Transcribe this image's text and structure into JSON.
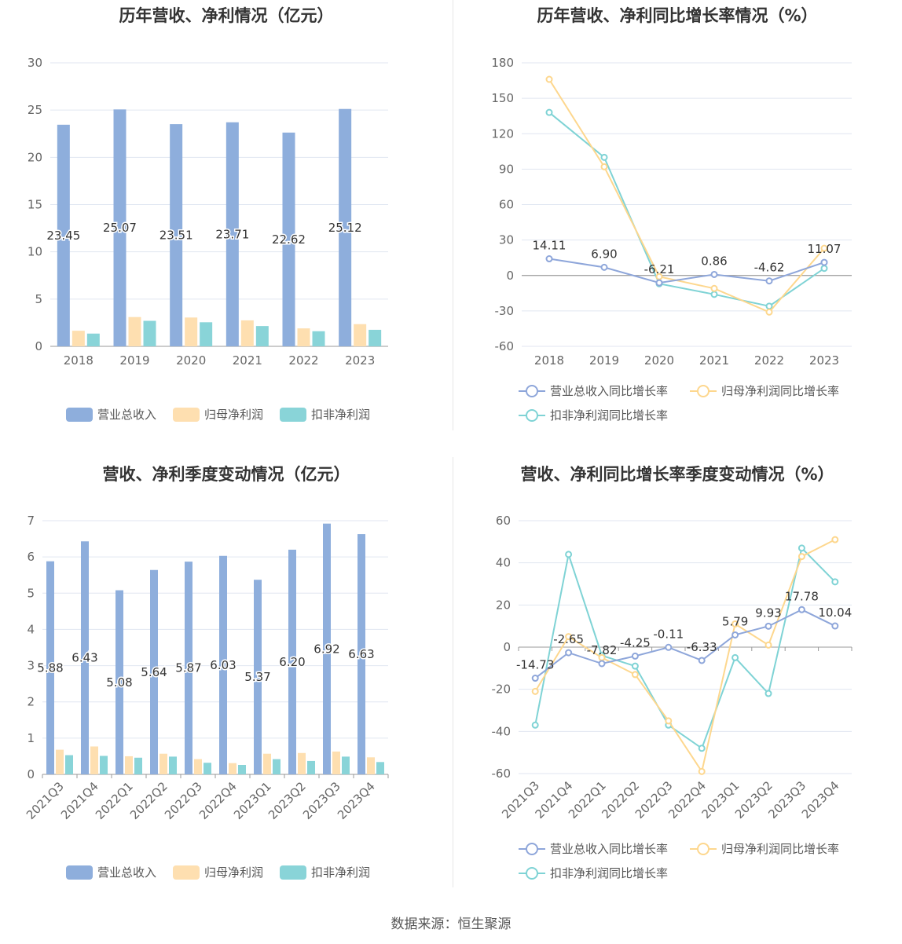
{
  "source": "数据来源：恒生聚源",
  "colors": {
    "blue": "#8eaedc",
    "orange": "#fedfb0",
    "teal": "#89d4d8",
    "line_blue": "#8ea6da",
    "line_orange": "#fdd78e",
    "line_teal": "#7fd3d5"
  },
  "panels": [
    {
      "title": "历年营收、净利情况（亿元）",
      "legend": [
        "营业总收入",
        "归母净利润",
        "扣非净利润"
      ]
    },
    {
      "title": "历年营收、净利同比增长率情况（%）",
      "legend": [
        "营业总收入同比增长率",
        "归母净利润同比增长率",
        "扣非净利润同比增长率"
      ]
    },
    {
      "title": "营收、净利季度变动情况（亿元）",
      "legend": [
        "营业总收入",
        "归母净利润",
        "扣非净利润"
      ]
    },
    {
      "title": "营收、净利同比增长率季度变动情况（%）",
      "legend": [
        "营业总收入同比增长率",
        "归母净利润同比增长率",
        "扣非净利润同比增长率"
      ]
    }
  ],
  "chart_data": [
    {
      "type": "bar",
      "categories": [
        "2018",
        "2019",
        "2020",
        "2021",
        "2022",
        "2023"
      ],
      "ylim": [
        0,
        30
      ],
      "yticks": [
        0,
        5,
        10,
        15,
        20,
        25,
        30
      ],
      "series": [
        {
          "name": "营业总收入",
          "values": [
            23.45,
            25.07,
            23.51,
            23.71,
            22.62,
            25.12
          ],
          "labels": [
            "23.45",
            "25.07",
            "23.51",
            "23.71",
            "22.62",
            "25.12"
          ]
        },
        {
          "name": "归母净利润",
          "values": [
            1.65,
            3.1,
            3.05,
            2.75,
            1.9,
            2.35
          ]
        },
        {
          "name": "扣非净利润",
          "values": [
            1.35,
            2.7,
            2.55,
            2.15,
            1.6,
            1.75
          ]
        }
      ]
    },
    {
      "type": "line",
      "categories": [
        "2018",
        "2019",
        "2020",
        "2021",
        "2022",
        "2023"
      ],
      "ylim": [
        -60,
        180
      ],
      "yticks": [
        -60,
        -30,
        0,
        30,
        60,
        90,
        120,
        150,
        180
      ],
      "series": [
        {
          "name": "营业总收入同比增长率",
          "values": [
            14.11,
            6.9,
            -6.21,
            0.86,
            -4.62,
            11.07
          ],
          "labels": [
            "14.11",
            "6.90",
            "-6.21",
            "0.86",
            "-4.62",
            "11.07"
          ]
        },
        {
          "name": "归母净利润同比增长率",
          "values": [
            166,
            92,
            -1,
            -11,
            -31,
            23
          ]
        },
        {
          "name": "扣非净利润同比增长率",
          "values": [
            138,
            100,
            -7,
            -16,
            -26,
            6
          ]
        }
      ]
    },
    {
      "type": "bar",
      "categories": [
        "2021Q3",
        "2021Q4",
        "2022Q1",
        "2022Q2",
        "2022Q3",
        "2022Q4",
        "2023Q1",
        "2023Q2",
        "2023Q3",
        "2023Q4"
      ],
      "ylim": [
        0,
        7
      ],
      "yticks": [
        0,
        1,
        2,
        3,
        4,
        5,
        6,
        7
      ],
      "series": [
        {
          "name": "营业总收入",
          "values": [
            5.88,
            6.43,
            5.08,
            5.64,
            5.87,
            6.03,
            5.37,
            6.2,
            6.92,
            6.63
          ],
          "labels": [
            "5.88",
            "6.43",
            "5.08",
            "5.64",
            "5.87",
            "6.03",
            "5.37",
            "6.20",
            "6.92",
            "6.63"
          ]
        },
        {
          "name": "归母净利润",
          "values": [
            0.68,
            0.77,
            0.5,
            0.57,
            0.42,
            0.31,
            0.57,
            0.59,
            0.63,
            0.47
          ]
        },
        {
          "name": "扣非净利润",
          "values": [
            0.53,
            0.51,
            0.46,
            0.49,
            0.32,
            0.26,
            0.42,
            0.37,
            0.49,
            0.34
          ]
        }
      ]
    },
    {
      "type": "line",
      "categories": [
        "2021Q3",
        "2021Q4",
        "2022Q1",
        "2022Q2",
        "2022Q3",
        "2022Q4",
        "2023Q1",
        "2023Q2",
        "2023Q3",
        "2023Q4"
      ],
      "ylim": [
        -60,
        60
      ],
      "yticks": [
        -60,
        -40,
        -20,
        0,
        20,
        40,
        60
      ],
      "series": [
        {
          "name": "营业总收入同比增长率",
          "values": [
            -14.73,
            -2.65,
            -7.82,
            -4.25,
            -0.11,
            -6.33,
            5.79,
            9.93,
            17.78,
            10.04
          ],
          "labels": [
            "-14.73",
            "-2.65",
            "-7.82",
            "-4.25",
            "-0.11",
            "-6.33",
            "5.79",
            "9.93",
            "17.78",
            "10.04"
          ]
        },
        {
          "name": "归母净利润同比增长率",
          "values": [
            -21,
            5,
            -5,
            -13,
            -35,
            -59,
            11,
            1,
            43,
            51
          ]
        },
        {
          "name": "扣非净利润同比增长率",
          "values": [
            -37,
            44,
            -4,
            -9,
            -37,
            -48,
            -5,
            -22,
            47,
            31
          ]
        }
      ]
    }
  ]
}
